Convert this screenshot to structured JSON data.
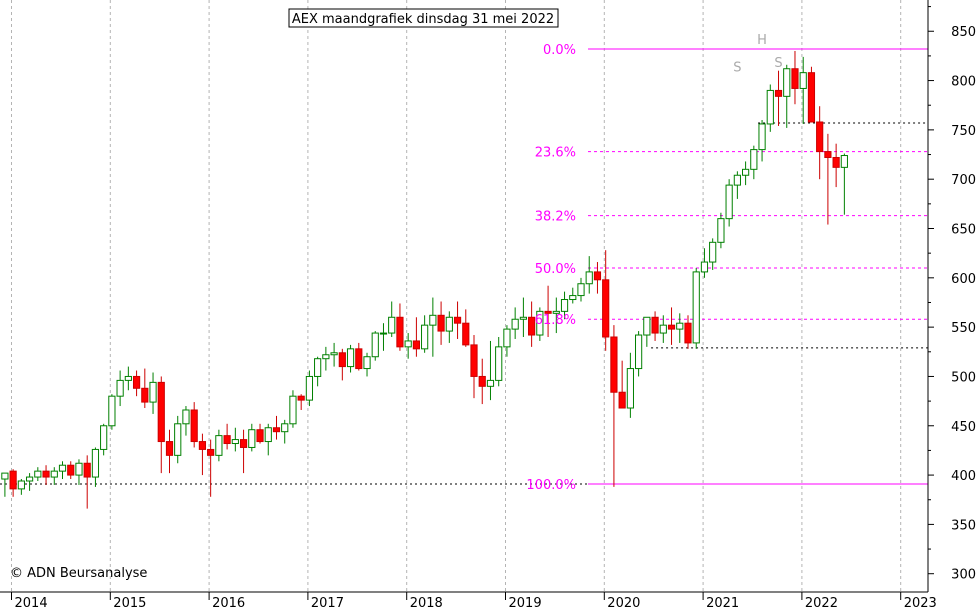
{
  "title": "AEX maandgrafiek dinsdag 31 mei 2022",
  "copyright": "© ADN Beursanalyse",
  "colors": {
    "up_fill": "#ffffff",
    "up_stroke": "#008000",
    "down_fill": "#ff0000",
    "down_stroke": "#cc0000",
    "fib": "#ff00ff",
    "pattern_label": "#aaaaaa",
    "grid": "#b4b4b4",
    "support_line": "#000000"
  },
  "chart_data": {
    "type": "candlestick",
    "title": "AEX maandgrafiek dinsdag 31 mei 2022",
    "ylim": [
      280,
      870
    ],
    "y_ticks": [
      300,
      350,
      400,
      450,
      500,
      550,
      600,
      650,
      700,
      750,
      800,
      850
    ],
    "x_tick_labels": [
      "2014",
      "2015",
      "2016",
      "2017",
      "2018",
      "2019",
      "2020",
      "2021",
      "2022",
      "2023"
    ],
    "grid": true,
    "months": [
      "2014-01",
      "2014-02",
      "2014-03",
      "2014-04",
      "2014-05",
      "2014-06",
      "2014-07",
      "2014-08",
      "2014-09",
      "2014-10",
      "2014-11",
      "2014-12",
      "2015-01",
      "2015-02",
      "2015-03",
      "2015-04",
      "2015-05",
      "2015-06",
      "2015-07",
      "2015-08",
      "2015-09",
      "2015-10",
      "2015-11",
      "2015-12",
      "2016-01",
      "2016-02",
      "2016-03",
      "2016-04",
      "2016-05",
      "2016-06",
      "2016-07",
      "2016-08",
      "2016-09",
      "2016-10",
      "2016-11",
      "2016-12",
      "2017-01",
      "2017-02",
      "2017-03",
      "2017-04",
      "2017-05",
      "2017-06",
      "2017-07",
      "2017-08",
      "2017-09",
      "2017-10",
      "2017-11",
      "2017-12",
      "2018-01",
      "2018-02",
      "2018-03",
      "2018-04",
      "2018-05",
      "2018-06",
      "2018-07",
      "2018-08",
      "2018-09",
      "2018-10",
      "2018-11",
      "2018-12",
      "2019-01",
      "2019-02",
      "2019-03",
      "2019-04",
      "2019-05",
      "2019-06",
      "2019-07",
      "2019-08",
      "2019-09",
      "2019-10",
      "2019-11",
      "2019-12",
      "2020-01",
      "2020-02",
      "2020-03",
      "2020-04",
      "2020-05",
      "2020-06",
      "2020-07",
      "2020-08",
      "2020-09",
      "2020-10",
      "2020-11",
      "2020-12",
      "2021-01",
      "2021-02",
      "2021-03",
      "2021-04",
      "2021-05",
      "2021-06",
      "2021-07",
      "2021-08",
      "2021-09",
      "2021-10",
      "2021-11",
      "2021-12",
      "2022-01",
      "2022-02",
      "2022-03",
      "2022-04",
      "2022-05"
    ],
    "ohlc": [
      [
        396,
        402,
        378,
        402
      ],
      [
        404,
        406,
        378,
        386
      ],
      [
        386,
        396,
        380,
        394
      ],
      [
        394,
        402,
        384,
        398
      ],
      [
        398,
        408,
        394,
        404
      ],
      [
        404,
        410,
        390,
        398
      ],
      [
        398,
        408,
        390,
        404
      ],
      [
        404,
        414,
        396,
        410
      ],
      [
        410,
        414,
        396,
        400
      ],
      [
        400,
        416,
        390,
        412
      ],
      [
        412,
        420,
        366,
        398
      ],
      [
        398,
        428,
        388,
        426
      ],
      [
        426,
        452,
        420,
        450
      ],
      [
        450,
        482,
        446,
        480
      ],
      [
        480,
        506,
        470,
        496
      ],
      [
        496,
        510,
        486,
        500
      ],
      [
        500,
        506,
        480,
        488
      ],
      [
        488,
        508,
        468,
        474
      ],
      [
        474,
        504,
        462,
        494
      ],
      [
        494,
        500,
        402,
        434
      ],
      [
        434,
        446,
        402,
        420
      ],
      [
        420,
        460,
        412,
        452
      ],
      [
        452,
        470,
        440,
        466
      ],
      [
        466,
        474,
        428,
        434
      ],
      [
        434,
        442,
        400,
        426
      ],
      [
        426,
        436,
        378,
        420
      ],
      [
        420,
        446,
        414,
        440
      ],
      [
        440,
        452,
        426,
        432
      ],
      [
        432,
        448,
        424,
        436
      ],
      [
        436,
        446,
        402,
        428
      ],
      [
        428,
        452,
        424,
        446
      ],
      [
        446,
        452,
        432,
        434
      ],
      [
        434,
        452,
        420,
        448
      ],
      [
        448,
        460,
        436,
        444
      ],
      [
        444,
        456,
        432,
        452
      ],
      [
        452,
        486,
        448,
        480
      ],
      [
        480,
        482,
        466,
        476
      ],
      [
        476,
        506,
        470,
        500
      ],
      [
        500,
        520,
        490,
        518
      ],
      [
        518,
        530,
        506,
        522
      ],
      [
        522,
        534,
        510,
        524
      ],
      [
        524,
        528,
        496,
        510
      ],
      [
        510,
        532,
        504,
        528
      ],
      [
        528,
        534,
        506,
        508
      ],
      [
        508,
        524,
        500,
        520
      ],
      [
        520,
        546,
        516,
        544
      ],
      [
        544,
        554,
        526,
        544
      ],
      [
        544,
        576,
        540,
        560
      ],
      [
        560,
        574,
        526,
        530
      ],
      [
        530,
        544,
        518,
        536
      ],
      [
        536,
        560,
        520,
        528
      ],
      [
        528,
        562,
        524,
        552
      ],
      [
        552,
        580,
        520,
        562
      ],
      [
        562,
        576,
        532,
        546
      ],
      [
        546,
        566,
        534,
        560
      ],
      [
        560,
        576,
        538,
        554
      ],
      [
        554,
        568,
        530,
        532
      ],
      [
        532,
        542,
        478,
        500
      ],
      [
        500,
        518,
        472,
        490
      ],
      [
        490,
        536,
        476,
        496
      ],
      [
        496,
        540,
        490,
        530
      ],
      [
        530,
        552,
        520,
        548
      ],
      [
        548,
        570,
        538,
        558
      ],
      [
        558,
        580,
        540,
        560
      ],
      [
        560,
        576,
        530,
        542
      ],
      [
        542,
        570,
        536,
        566
      ],
      [
        566,
        592,
        540,
        564
      ],
      [
        564,
        580,
        544,
        566
      ],
      [
        566,
        586,
        558,
        578
      ],
      [
        578,
        590,
        574,
        582
      ],
      [
        582,
        600,
        576,
        594
      ],
      [
        594,
        622,
        584,
        606
      ],
      [
        606,
        616,
        584,
        598
      ],
      [
        598,
        628,
        526,
        540
      ],
      [
        540,
        552,
        388,
        484
      ],
      [
        484,
        516,
        470,
        468
      ],
      [
        468,
        524,
        458,
        508
      ],
      [
        508,
        546,
        500,
        542
      ],
      [
        542,
        560,
        530,
        560
      ],
      [
        560,
        566,
        536,
        544
      ],
      [
        544,
        562,
        534,
        552
      ],
      [
        552,
        570,
        532,
        548
      ],
      [
        548,
        564,
        534,
        554
      ],
      [
        554,
        562,
        528,
        534
      ],
      [
        534,
        610,
        528,
        606
      ],
      [
        606,
        630,
        600,
        616
      ],
      [
        616,
        640,
        608,
        636
      ],
      [
        636,
        666,
        630,
        660
      ],
      [
        660,
        700,
        652,
        694
      ],
      [
        694,
        708,
        680,
        704
      ],
      [
        704,
        718,
        694,
        710
      ],
      [
        710,
        734,
        700,
        730
      ],
      [
        730,
        760,
        718,
        756
      ],
      [
        756,
        796,
        748,
        790
      ],
      [
        790,
        810,
        754,
        784
      ],
      [
        784,
        816,
        752,
        812
      ],
      [
        812,
        830,
        776,
        792
      ],
      [
        792,
        824,
        756,
        808
      ],
      [
        808,
        814,
        760,
        758
      ],
      [
        758,
        774,
        700,
        728
      ],
      [
        728,
        746,
        654,
        722
      ],
      [
        722,
        736,
        692,
        712
      ],
      [
        712,
        726,
        664,
        724
      ]
    ],
    "fibonacci_levels": [
      {
        "label": "0.0%",
        "value": 832
      },
      {
        "label": "23.6%",
        "value": 728
      },
      {
        "label": "38.2%",
        "value": 663
      },
      {
        "label": "50.0%",
        "value": 610
      },
      {
        "label": "61.8%",
        "value": 558
      },
      {
        "label": "100.0%",
        "value": 391
      }
    ],
    "support_lines": [
      {
        "value": 391,
        "from": "2014-01",
        "to": "2019-12"
      },
      {
        "value": 757,
        "from": "2021-09",
        "to": "2022-12"
      },
      {
        "value": 529,
        "from": "2020-08",
        "to": "2022-12"
      }
    ],
    "pattern_labels": [
      {
        "text": "S",
        "month": "2021-06",
        "value": 809
      },
      {
        "text": "H",
        "month": "2021-09",
        "value": 837
      },
      {
        "text": "S",
        "month": "2021-11",
        "value": 814
      }
    ]
  }
}
